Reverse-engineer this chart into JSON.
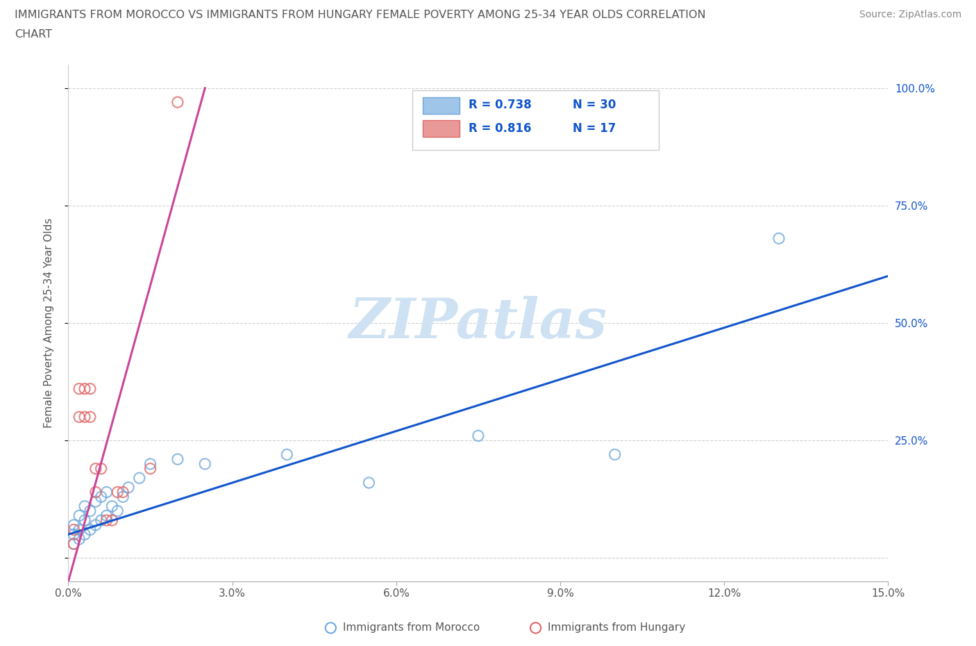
{
  "title_line1": "IMMIGRANTS FROM MOROCCO VS IMMIGRANTS FROM HUNGARY FEMALE POVERTY AMONG 25-34 YEAR OLDS CORRELATION",
  "title_line2": "CHART",
  "source": "Source: ZipAtlas.com",
  "ylabel": "Female Poverty Among 25-34 Year Olds",
  "xlim": [
    0.0,
    0.15
  ],
  "ylim": [
    -0.05,
    1.05
  ],
  "xticks": [
    0.0,
    0.03,
    0.06,
    0.09,
    0.12,
    0.15
  ],
  "xtick_labels": [
    "0.0%",
    "3.0%",
    "6.0%",
    "9.0%",
    "12.0%",
    "15.0%"
  ],
  "yticks": [
    0.0,
    0.25,
    0.5,
    0.75,
    1.0
  ],
  "ytick_labels_right": [
    "",
    "25.0%",
    "50.0%",
    "75.0%",
    "100.0%"
  ],
  "morocco_color": "#9fc5e8",
  "morocco_edge_color": "#6fa8dc",
  "hungary_color": "#ea9999",
  "hungary_edge_color": "#e06666",
  "morocco_line_color": "#1155cc",
  "hungary_line_color": "#cc4499",
  "morocco_R": 0.738,
  "morocco_N": 30,
  "hungary_R": 0.816,
  "hungary_N": 17,
  "legend_text_color": "#1155cc",
  "legend_N_color": "#cc4400",
  "watermark": "ZIPatlas",
  "watermark_color": "#cfe2f3",
  "morocco_x": [
    0.001,
    0.001,
    0.001,
    0.002,
    0.002,
    0.002,
    0.003,
    0.003,
    0.003,
    0.004,
    0.004,
    0.005,
    0.005,
    0.006,
    0.006,
    0.007,
    0.007,
    0.008,
    0.009,
    0.01,
    0.011,
    0.013,
    0.015,
    0.02,
    0.025,
    0.04,
    0.055,
    0.075,
    0.1,
    0.13
  ],
  "morocco_y": [
    0.03,
    0.05,
    0.07,
    0.04,
    0.06,
    0.09,
    0.05,
    0.08,
    0.11,
    0.06,
    0.1,
    0.07,
    0.12,
    0.08,
    0.13,
    0.09,
    0.14,
    0.11,
    0.1,
    0.13,
    0.15,
    0.17,
    0.2,
    0.21,
    0.2,
    0.22,
    0.16,
    0.26,
    0.22,
    0.68
  ],
  "hungary_x": [
    0.001,
    0.001,
    0.002,
    0.002,
    0.003,
    0.003,
    0.004,
    0.004,
    0.005,
    0.005,
    0.006,
    0.007,
    0.008,
    0.009,
    0.01,
    0.015,
    0.02
  ],
  "hungary_y": [
    0.03,
    0.06,
    0.3,
    0.36,
    0.3,
    0.36,
    0.3,
    0.36,
    0.14,
    0.19,
    0.19,
    0.08,
    0.08,
    0.14,
    0.14,
    0.19,
    0.97
  ],
  "mor_line_x0": 0.0,
  "mor_line_y0": 0.05,
  "mor_line_x1": 0.15,
  "mor_line_y1": 0.6,
  "hun_line_x0": 0.0,
  "hun_line_y0": -0.05,
  "hun_line_x1": 0.025,
  "hun_line_y1": 1.0
}
